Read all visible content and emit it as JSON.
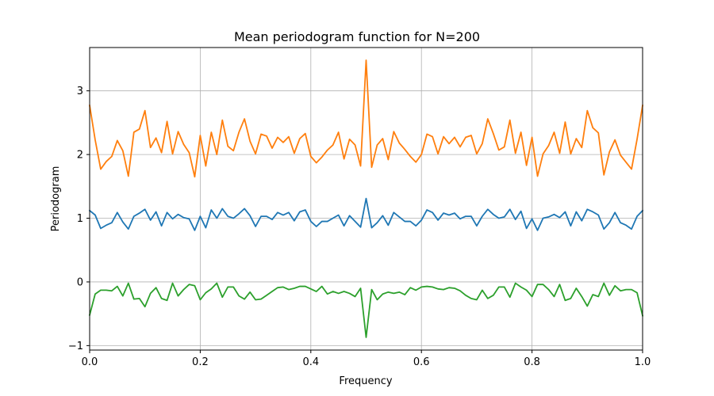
{
  "chart_data": {
    "type": "line",
    "title": "Mean periodogram function for N=200",
    "xlabel": "Frequency",
    "ylabel": "Periodogram",
    "xlim": [
      0,
      1
    ],
    "ylim": [
      -1.07,
      3.68
    ],
    "xticks": [
      0,
      0.2,
      0.4,
      0.6,
      0.8,
      1.0
    ],
    "xtick_labels": [
      "0.0",
      "0.2",
      "0.4",
      "0.6",
      "0.8",
      "1.0"
    ],
    "yticks": [
      -1,
      0,
      1,
      2,
      3
    ],
    "ytick_labels": [
      "−1",
      "0",
      "1",
      "2",
      "3"
    ],
    "grid": true,
    "legend": "none",
    "x": [
      0,
      0.01,
      0.02,
      0.03,
      0.04,
      0.05,
      0.06,
      0.07,
      0.08,
      0.09,
      0.1,
      0.11,
      0.12,
      0.13,
      0.14,
      0.15,
      0.16,
      0.17,
      0.18,
      0.19,
      0.2,
      0.21,
      0.22,
      0.23,
      0.24,
      0.25,
      0.26,
      0.27,
      0.28,
      0.29,
      0.3,
      0.31,
      0.32,
      0.33,
      0.34,
      0.35,
      0.36,
      0.37,
      0.38,
      0.39,
      0.4,
      0.41,
      0.42,
      0.43,
      0.44,
      0.45,
      0.46,
      0.47,
      0.48,
      0.49,
      0.5,
      0.51,
      0.52,
      0.53,
      0.54,
      0.55,
      0.56,
      0.57,
      0.58,
      0.59,
      0.6,
      0.61,
      0.62,
      0.63,
      0.64,
      0.65,
      0.66,
      0.67,
      0.68,
      0.69,
      0.7,
      0.71,
      0.72,
      0.73,
      0.74,
      0.75,
      0.76,
      0.77,
      0.78,
      0.79,
      0.8,
      0.81,
      0.82,
      0.83,
      0.84,
      0.85,
      0.86,
      0.87,
      0.88,
      0.89,
      0.9,
      0.91,
      0.92,
      0.93,
      0.94,
      0.95,
      0.96,
      0.97,
      0.98,
      0.99,
      1.0
    ],
    "series": [
      {
        "color": "#1f77b4",
        "values": [
          1.12,
          1.05,
          0.84,
          0.89,
          0.93,
          1.09,
          0.94,
          0.83,
          1.03,
          1.08,
          1.14,
          0.97,
          1.1,
          0.88,
          1.09,
          0.99,
          1.06,
          1.01,
          0.99,
          0.81,
          1.03,
          0.85,
          1.13,
          1.0,
          1.15,
          1.03,
          1.0,
          1.07,
          1.15,
          1.04,
          0.87,
          1.03,
          1.03,
          0.98,
          1.09,
          1.05,
          1.09,
          0.96,
          1.1,
          1.13,
          0.95,
          0.87,
          0.95,
          0.95,
          1.0,
          1.05,
          0.88,
          1.04,
          0.95,
          0.86,
          1.31,
          0.85,
          0.93,
          1.04,
          0.89,
          1.09,
          1.02,
          0.95,
          0.95,
          0.88,
          0.97,
          1.13,
          1.09,
          0.97,
          1.08,
          1.05,
          1.08,
          0.99,
          1.03,
          1.03,
          0.88,
          1.03,
          1.14,
          1.06,
          1.0,
          1.02,
          1.14,
          0.98,
          1.11,
          0.84,
          0.99,
          0.81,
          1.0,
          1.02,
          1.06,
          1.01,
          1.1,
          0.88,
          1.1,
          0.96,
          1.14,
          1.1,
          1.05,
          0.83,
          0.93,
          1.09,
          0.93,
          0.89,
          0.83,
          1.03,
          1.12
        ]
      },
      {
        "color": "#ff7f0e",
        "values": [
          2.77,
          2.23,
          1.77,
          1.89,
          1.97,
          2.22,
          2.06,
          1.66,
          2.35,
          2.4,
          2.69,
          2.11,
          2.26,
          2.03,
          2.52,
          2.01,
          2.36,
          2.16,
          2.03,
          1.65,
          2.3,
          1.82,
          2.35,
          2.0,
          2.54,
          2.13,
          2.06,
          2.35,
          2.56,
          2.21,
          2.01,
          2.32,
          2.29,
          2.1,
          2.27,
          2.19,
          2.28,
          2.02,
          2.25,
          2.33,
          1.97,
          1.87,
          1.96,
          2.07,
          2.15,
          2.35,
          1.93,
          2.24,
          2.15,
          1.82,
          3.48,
          1.8,
          2.15,
          2.25,
          1.92,
          2.36,
          2.18,
          2.08,
          1.97,
          1.88,
          2.0,
          2.32,
          2.28,
          2.01,
          2.28,
          2.17,
          2.27,
          2.12,
          2.27,
          2.3,
          2.01,
          2.17,
          2.56,
          2.33,
          2.07,
          2.12,
          2.54,
          2.02,
          2.35,
          1.83,
          2.27,
          1.66,
          2.01,
          2.14,
          2.35,
          2.02,
          2.51,
          2.01,
          2.25,
          2.11,
          2.69,
          2.42,
          2.34,
          1.68,
          2.04,
          2.23,
          1.99,
          1.88,
          1.77,
          2.24,
          2.77
        ]
      },
      {
        "color": "#2ca02c",
        "values": [
          -0.52,
          -0.19,
          -0.13,
          -0.13,
          -0.14,
          -0.07,
          -0.22,
          -0.02,
          -0.27,
          -0.26,
          -0.39,
          -0.18,
          -0.09,
          -0.26,
          -0.29,
          -0.02,
          -0.22,
          -0.12,
          -0.04,
          -0.06,
          -0.28,
          -0.17,
          -0.11,
          -0.02,
          -0.24,
          -0.08,
          -0.08,
          -0.22,
          -0.27,
          -0.16,
          -0.28,
          -0.27,
          -0.21,
          -0.15,
          -0.09,
          -0.08,
          -0.12,
          -0.1,
          -0.07,
          -0.07,
          -0.11,
          -0.15,
          -0.07,
          -0.19,
          -0.15,
          -0.18,
          -0.15,
          -0.18,
          -0.23,
          -0.1,
          -0.87,
          -0.12,
          -0.28,
          -0.19,
          -0.16,
          -0.18,
          -0.16,
          -0.2,
          -0.09,
          -0.13,
          -0.08,
          -0.07,
          -0.08,
          -0.11,
          -0.12,
          -0.09,
          -0.1,
          -0.14,
          -0.21,
          -0.26,
          -0.28,
          -0.13,
          -0.26,
          -0.21,
          -0.08,
          -0.08,
          -0.24,
          -0.02,
          -0.08,
          -0.13,
          -0.23,
          -0.04,
          -0.04,
          -0.12,
          -0.23,
          -0.04,
          -0.29,
          -0.26,
          -0.1,
          -0.23,
          -0.38,
          -0.2,
          -0.23,
          -0.02,
          -0.21,
          -0.06,
          -0.14,
          -0.12,
          -0.12,
          -0.17,
          -0.53
        ]
      }
    ]
  }
}
